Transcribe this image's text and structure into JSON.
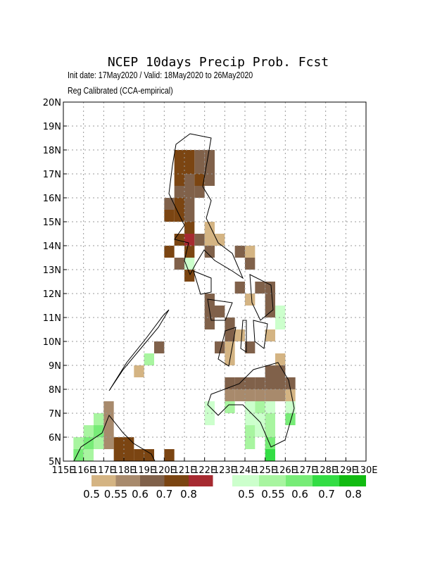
{
  "chart_data": {
    "type": "heatmap",
    "title": "NCEP 10days Precip Prob. Fcst",
    "subtitle": "Init date: 17May2020 / Valid: 18May2020 to 26May2020",
    "subtitle2": "Reg Calibrated (CCA-empirical)",
    "xlim": [
      115,
      130
    ],
    "ylim": [
      5,
      20
    ],
    "grid": true,
    "cell_size": 0.5,
    "xticks": [
      {
        "value": 115,
        "label": "115E"
      },
      {
        "value": 116,
        "label": "116E"
      },
      {
        "value": 117,
        "label": "117E"
      },
      {
        "value": 118,
        "label": "118E"
      },
      {
        "value": 119,
        "label": "119E"
      },
      {
        "value": 120,
        "label": "120E"
      },
      {
        "value": 121,
        "label": "121E"
      },
      {
        "value": 122,
        "label": "122E"
      },
      {
        "value": 123,
        "label": "123E"
      },
      {
        "value": 124,
        "label": "124E"
      },
      {
        "value": 125,
        "label": "125E"
      },
      {
        "value": 126,
        "label": "126E"
      },
      {
        "value": 127,
        "label": "127E"
      },
      {
        "value": 128,
        "label": "128E"
      },
      {
        "value": 129,
        "label": "129E"
      },
      {
        "value": 130,
        "label": "130E"
      }
    ],
    "yticks": [
      {
        "value": 5,
        "label": "5N"
      },
      {
        "value": 6,
        "label": "6N"
      },
      {
        "value": 7,
        "label": "7N"
      },
      {
        "value": 8,
        "label": "8N"
      },
      {
        "value": 9,
        "label": "9N"
      },
      {
        "value": 10,
        "label": "10N"
      },
      {
        "value": 11,
        "label": "11N"
      },
      {
        "value": 12,
        "label": "12N"
      },
      {
        "value": 13,
        "label": "13N"
      },
      {
        "value": 14,
        "label": "14N"
      },
      {
        "value": 15,
        "label": "15N"
      },
      {
        "value": 16,
        "label": "16N"
      },
      {
        "value": 17,
        "label": "17N"
      },
      {
        "value": 18,
        "label": "18N"
      },
      {
        "value": 19,
        "label": "19N"
      },
      {
        "value": 20,
        "label": "20N"
      }
    ],
    "below_scale": {
      "levels": [
        0.5,
        0.55,
        0.6,
        0.7,
        0.8
      ],
      "colors": [
        "#d4b483",
        "#a88a6c",
        "#80614a",
        "#7b4512",
        "#a62a30"
      ]
    },
    "above_scale": {
      "levels": [
        0.5,
        0.55,
        0.6,
        0.7,
        0.8
      ],
      "colors": [
        "#ccffcc",
        "#a8f5a0",
        "#77ec77",
        "#33dd44",
        "#11bb11"
      ]
    },
    "below_cells": [
      [
        120.5,
        17.5,
        0.7
      ],
      [
        121,
        17.5,
        0.7
      ],
      [
        121.5,
        17.5,
        0.6
      ],
      [
        122,
        17.5,
        0.6
      ],
      [
        120.5,
        17,
        0.7
      ],
      [
        121,
        17,
        0.7
      ],
      [
        121.5,
        17,
        0.6
      ],
      [
        122,
        17,
        0.6
      ],
      [
        120.5,
        16.5,
        0.7
      ],
      [
        121,
        16.5,
        0.6
      ],
      [
        121.5,
        16.5,
        0.7
      ],
      [
        122,
        16.5,
        0.6
      ],
      [
        120.5,
        16,
        0.6
      ],
      [
        121,
        16,
        0.6
      ],
      [
        121.5,
        16,
        0.6
      ],
      [
        120,
        15.5,
        0.6
      ],
      [
        120.5,
        15.5,
        0.7
      ],
      [
        121,
        15.5,
        0.6
      ],
      [
        120,
        15,
        0.7
      ],
      [
        120.5,
        15,
        0.7
      ],
      [
        121,
        15,
        0.6
      ],
      [
        121,
        14.5,
        0.7
      ],
      [
        122,
        14.5,
        0.5
      ],
      [
        120.5,
        14,
        0.7
      ],
      [
        121,
        14,
        0.8
      ],
      [
        121.5,
        14,
        0.6
      ],
      [
        122,
        14,
        0.5
      ],
      [
        122.5,
        14,
        0.5
      ],
      [
        120,
        13.5,
        0.7
      ],
      [
        121,
        13.5,
        0.7
      ],
      [
        122,
        13.5,
        0.6
      ],
      [
        123.5,
        13.5,
        0.6
      ],
      [
        124,
        13.5,
        0.5
      ],
      [
        120.5,
        13,
        0.6
      ],
      [
        124,
        13,
        0.6
      ],
      [
        121,
        12.5,
        0.7
      ],
      [
        123.5,
        12,
        0.6
      ],
      [
        124.5,
        12,
        0.6
      ],
      [
        125,
        12,
        0.6
      ],
      [
        122,
        11.5,
        0.6
      ],
      [
        124,
        11.5,
        0.5
      ],
      [
        125,
        11.5,
        0.6
      ],
      [
        122,
        11,
        0.6
      ],
      [
        122.5,
        11,
        0.6
      ],
      [
        125,
        11,
        0.6
      ],
      [
        122,
        10.5,
        0.6
      ],
      [
        123,
        10.5,
        0.6
      ],
      [
        123,
        10,
        0.6
      ],
      [
        123.5,
        10,
        0.5
      ],
      [
        125,
        10,
        0.5
      ],
      [
        119.5,
        9.5,
        0.6
      ],
      [
        122.5,
        9.5,
        0.6
      ],
      [
        123,
        9.5,
        0.5
      ],
      [
        124,
        9.5,
        0.6
      ],
      [
        123,
        9,
        0.5
      ],
      [
        125.5,
        9,
        0.5
      ],
      [
        118.5,
        8.5,
        0.5
      ],
      [
        125,
        8.5,
        0.6
      ],
      [
        125.5,
        8.5,
        0.6
      ],
      [
        123,
        8,
        0.6
      ],
      [
        123.5,
        8,
        0.6
      ],
      [
        124,
        8,
        0.6
      ],
      [
        124.5,
        8,
        0.6
      ],
      [
        125,
        8,
        0.6
      ],
      [
        125.5,
        8,
        0.6
      ],
      [
        126,
        8,
        0.6
      ],
      [
        123,
        7.5,
        0.55
      ],
      [
        123.5,
        7.5,
        0.55
      ],
      [
        124,
        7.5,
        0.55
      ],
      [
        124.5,
        7.5,
        0.55
      ],
      [
        125,
        7.5,
        0.55
      ],
      [
        125.5,
        7.5,
        0.55
      ],
      [
        126,
        7.5,
        0.5
      ],
      [
        117,
        7,
        0.55
      ],
      [
        117,
        6.5,
        0.55
      ],
      [
        117,
        6,
        0.55
      ],
      [
        117,
        5.5,
        0.55
      ],
      [
        117.5,
        5.5,
        0.7
      ],
      [
        118,
        5.5,
        0.7
      ],
      [
        117.5,
        5,
        0.7
      ],
      [
        118,
        5,
        0.7
      ],
      [
        118.5,
        5,
        0.7
      ],
      [
        119,
        5,
        0.7
      ],
      [
        120,
        5,
        0.7
      ]
    ],
    "above_cells": [
      [
        121,
        13,
        0.5
      ],
      [
        125.5,
        11,
        0.5
      ],
      [
        125.5,
        10.5,
        0.5
      ],
      [
        119,
        9,
        0.55
      ],
      [
        122,
        7,
        0.5
      ],
      [
        123,
        7,
        0.55
      ],
      [
        124,
        7,
        0.5
      ],
      [
        124.5,
        7,
        0.55
      ],
      [
        125,
        7,
        0.5
      ],
      [
        126,
        7,
        0.5
      ],
      [
        122,
        6.5,
        0.5
      ],
      [
        124,
        6.5,
        0.5
      ],
      [
        124.5,
        6.5,
        0.5
      ],
      [
        125,
        6.5,
        0.55
      ],
      [
        126,
        6.5,
        0.6
      ],
      [
        124,
        6,
        0.55
      ],
      [
        124.5,
        6,
        0.5
      ],
      [
        125,
        6,
        0.55
      ],
      [
        124,
        5.5,
        0.55
      ],
      [
        125,
        5.5,
        0.6
      ],
      [
        125,
        5,
        0.7
      ],
      [
        116.5,
        6.5,
        0.55
      ],
      [
        116,
        6,
        0.55
      ],
      [
        116.5,
        6,
        0.6
      ],
      [
        115.5,
        5.5,
        0.55
      ],
      [
        116,
        5.5,
        0.6
      ],
      [
        116.5,
        5.5,
        0.55
      ],
      [
        115.5,
        5,
        0.6
      ],
      [
        116,
        5,
        0.55
      ]
    ]
  }
}
